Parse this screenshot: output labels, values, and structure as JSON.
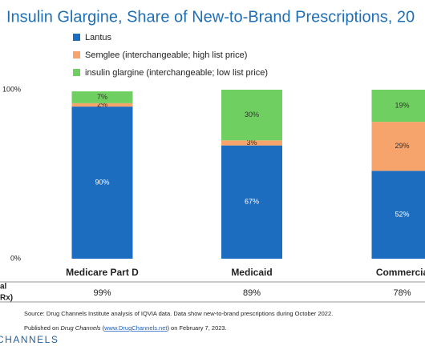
{
  "chart_data": {
    "type": "bar",
    "stacked": true,
    "title": "Insulin Glargine, Share of New-to-Brand Prescriptions, 20",
    "categories": [
      "Medicare Part D",
      "Medicaid",
      "Commercia"
    ],
    "series": [
      {
        "name": "Lantus",
        "color": "#1c6cc0",
        "values": [
          90,
          67,
          52
        ],
        "value_labels": [
          "90%",
          "67%",
          "52%"
        ]
      },
      {
        "name": "Semglee (interchangeable; high list price)",
        "color": "#f6a46c",
        "values": [
          2,
          3,
          29
        ],
        "value_labels": [
          "2%",
          "3%",
          "29%"
        ]
      },
      {
        "name": "insulin glargine (interchangeable; low list price)",
        "color": "#6fcf60",
        "values": [
          7,
          30,
          19
        ],
        "value_labels": [
          "7%",
          "30%",
          "19%"
        ]
      }
    ],
    "ylim": [
      0,
      100
    ],
    "yticks": [
      {
        "value": 0,
        "label": "0%"
      },
      {
        "value": 100,
        "label": "100%"
      }
    ],
    "summary_row": {
      "label_lines": [
        "al",
        "Rx)"
      ],
      "values": [
        99,
        89,
        78
      ],
      "value_labels": [
        "99%",
        "89%",
        "78%"
      ]
    },
    "source": "Source: Drug Channels Institute analysis of IQVIA data. Data show new-to-brand prescriptions during October 2022.",
    "published": [
      "Published on ",
      "Drug Channels",
      " (",
      "www.DrugChannels.net",
      ") on February 7, 2023."
    ],
    "logo": "CHANNELS"
  }
}
